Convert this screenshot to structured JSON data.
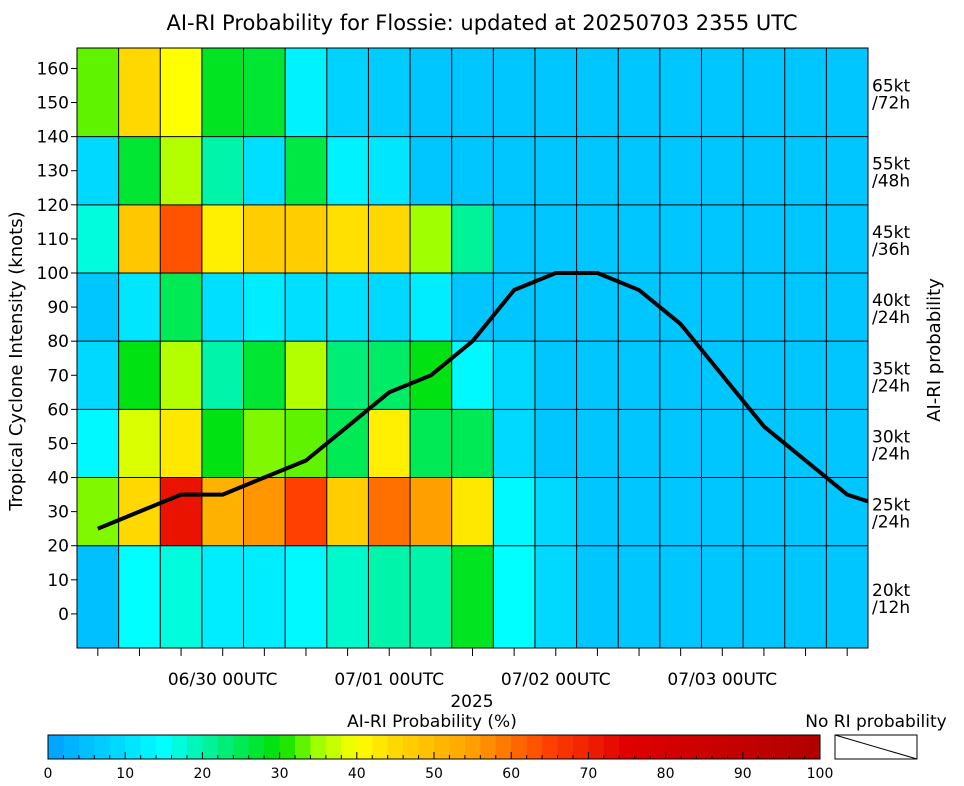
{
  "chart_data": {
    "type": "heatmap",
    "title": "AI-RI Probability for Flossie: updated at 20250703 2355 UTC",
    "ylabel": "Tropical Cyclone Intensity (knots)",
    "right_label": "AI-RI probability",
    "xlabel_year": "2025",
    "ylim": [
      0,
      160
    ],
    "y_ticks": [
      0,
      10,
      20,
      30,
      40,
      50,
      60,
      70,
      80,
      90,
      100,
      110,
      120,
      130,
      140,
      150,
      160
    ],
    "x_tick_labels": [
      "06/30 00UTC",
      "07/01 00UTC",
      "07/02 00UTC",
      "07/03 00UTC"
    ],
    "x_tick_label_columns": [
      3.5,
      7.5,
      11.5,
      15.5
    ],
    "n_columns": 19,
    "bands": [
      {
        "label": "20kt\n/12h",
        "range": [
          -10,
          20
        ]
      },
      {
        "label": "25kt\n/24h",
        "range": [
          20,
          40
        ]
      },
      {
        "label": "30kt\n/24h",
        "range": [
          40,
          60
        ]
      },
      {
        "label": "35kt\n/24h",
        "range": [
          60,
          80
        ]
      },
      {
        "label": "40kt\n/24h",
        "range": [
          80,
          100
        ]
      },
      {
        "label": "45kt\n/36h",
        "range": [
          100,
          120
        ]
      },
      {
        "label": "55kt\n/48h",
        "range": [
          120,
          140
        ]
      },
      {
        "label": "65kt\n/72h",
        "range": [
          140,
          166
        ]
      }
    ],
    "probabilities": [
      [
        5,
        15,
        17,
        12,
        12,
        14,
        18,
        20,
        20,
        28,
        15,
        9,
        6,
        6,
        6,
        6,
        6,
        6,
        6
      ],
      [
        34,
        45,
        72,
        52,
        56,
        65,
        47,
        60,
        55,
        43,
        14,
        9,
        6,
        6,
        6,
        6,
        6,
        6,
        6
      ],
      [
        14,
        38,
        43,
        29,
        34,
        33,
        25,
        42,
        25,
        25,
        9,
        6,
        6,
        6,
        6,
        6,
        6,
        6,
        6
      ],
      [
        9,
        29,
        36,
        20,
        27,
        36,
        23,
        24,
        29,
        14,
        9,
        6,
        6,
        6,
        6,
        6,
        6,
        6,
        6
      ],
      [
        6,
        11,
        25,
        10,
        12,
        10,
        10,
        9,
        12,
        6,
        6,
        6,
        6,
        6,
        6,
        6,
        6,
        6,
        6
      ],
      [
        17,
        48,
        63,
        42,
        47,
        47,
        44,
        45,
        35,
        21,
        6,
        6,
        6,
        6,
        6,
        6,
        6,
        6,
        6
      ],
      [
        9,
        27,
        36,
        20,
        10,
        26,
        13,
        11,
        6,
        6,
        6,
        6,
        6,
        6,
        6,
        6,
        6,
        6,
        6
      ],
      [
        33,
        45,
        40,
        28,
        27,
        13,
        8,
        7,
        6,
        6,
        6,
        6,
        6,
        6,
        6,
        6,
        6,
        6,
        6
      ]
    ],
    "intensity_series": {
      "x": [
        0.5,
        1.5,
        2.5,
        3.5,
        4.5,
        5.5,
        6.5,
        7.5,
        8.5,
        9.5,
        10.5,
        11.5,
        12.5,
        13.5,
        14.5,
        15.5,
        16.5,
        17.5,
        18.5,
        19.0
      ],
      "y": [
        25,
        30,
        35,
        35,
        40,
        45,
        55,
        65,
        70,
        80,
        95,
        100,
        100,
        95,
        85,
        70,
        55,
        45,
        35,
        33
      ]
    },
    "colorbar": {
      "title": "AI-RI Probability (%)",
      "ticks": [
        0,
        10,
        20,
        30,
        40,
        50,
        60,
        70,
        80,
        90,
        100
      ],
      "range": [
        0,
        100
      ],
      "stops": [
        {
          "v": 0,
          "c": "#00a0ff"
        },
        {
          "v": 15,
          "c": "#00ffff"
        },
        {
          "v": 30,
          "c": "#00e000"
        },
        {
          "v": 35,
          "c": "#a0ff00"
        },
        {
          "v": 40,
          "c": "#ffff00"
        },
        {
          "v": 45,
          "c": "#ffd800"
        },
        {
          "v": 55,
          "c": "#ffa000"
        },
        {
          "v": 65,
          "c": "#ff4000"
        },
        {
          "v": 75,
          "c": "#e00000"
        },
        {
          "v": 100,
          "c": "#b00000"
        }
      ],
      "no_ri_label": "No RI probability"
    }
  }
}
